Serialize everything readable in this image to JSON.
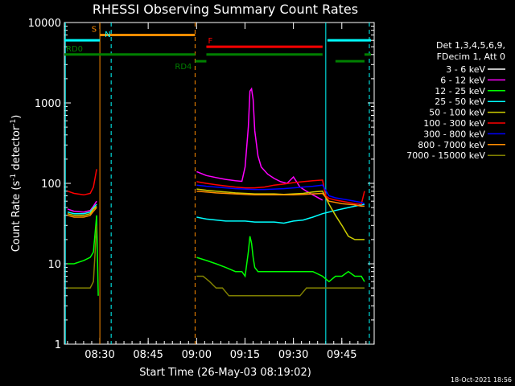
{
  "chart_data": {
    "type": "line",
    "title": "RHESSI Observing Summary Count Rates",
    "xlabel": "Start Time (26-May-03 08:19:02)",
    "ylabel_main": "Count Rate (s",
    "ylabel_exp1": "-1",
    "ylabel_mid": " detector",
    "ylabel_exp2": "-1",
    "ylabel_end": ")",
    "yscale": "log",
    "ylim": [
      1,
      10000
    ],
    "xlim_minutes": [
      0,
      96
    ],
    "x_ticks": [
      {
        "label": "08:30",
        "t": 10.97
      },
      {
        "label": "08:45",
        "t": 25.97
      },
      {
        "label": "09:00",
        "t": 40.97
      },
      {
        "label": "09:15",
        "t": 55.97
      },
      {
        "label": "09:30",
        "t": 70.97
      },
      {
        "label": "09:45",
        "t": 85.97
      }
    ],
    "y_ticks": [
      {
        "label": "1",
        "v": 1
      },
      {
        "label": "10",
        "v": 10
      },
      {
        "label": "100",
        "v": 100
      },
      {
        "label": "1000",
        "v": 1000
      },
      {
        "label": "10000",
        "v": 10000
      }
    ],
    "legend_header": [
      "Det 1,3,4,5,6,9,",
      "FDecim 1, Att 0"
    ],
    "legend_position": "right",
    "series": [
      {
        "name": "3 - 6 keV",
        "color": "#000000",
        "x": [
          0,
          3,
          6,
          8,
          9,
          40.5,
          41,
          45,
          50,
          52,
          55,
          57,
          58,
          59,
          60,
          61,
          62,
          64,
          66,
          68,
          70,
          72,
          74,
          76,
          78,
          79,
          80,
          80.5
        ],
        "y": [
          null,
          null,
          null,
          null,
          null,
          null,
          240,
          220,
          205,
          195,
          185,
          300,
          700,
          900,
          600,
          350,
          280,
          220,
          170,
          140,
          125,
          135,
          115,
          108,
          102,
          100,
          100,
          null
        ]
      },
      {
        "name": "6 - 12 keV",
        "color": "#ff00ff",
        "x": [
          0,
          1,
          3,
          6,
          8,
          9,
          10,
          11,
          40.5,
          41,
          44,
          47,
          50,
          53,
          55,
          56,
          57,
          57.5,
          58,
          58.5,
          59,
          60,
          61,
          63,
          65,
          67,
          69,
          71,
          73,
          75,
          77,
          79,
          80
        ],
        "y": [
          null,
          48,
          45,
          44,
          46,
          52,
          60,
          null,
          null,
          140,
          125,
          118,
          112,
          108,
          106,
          160,
          500,
          1400,
          1500,
          1100,
          450,
          220,
          160,
          130,
          115,
          105,
          100,
          120,
          90,
          80,
          72,
          65,
          62
        ]
      },
      {
        "name": "12 - 25 keV",
        "color": "#00ff00",
        "x": [
          0,
          1,
          3,
          6,
          8,
          9,
          10,
          10.5,
          11,
          40.5,
          41,
          44,
          47,
          50,
          53,
          55,
          56,
          57,
          57.5,
          58,
          58.5,
          59,
          60,
          62,
          65,
          68,
          71,
          74,
          77,
          80,
          82,
          84,
          86,
          88,
          90,
          92,
          93
        ],
        "y": [
          null,
          10,
          10,
          11,
          12,
          14,
          40,
          4,
          null,
          null,
          12,
          11,
          10,
          9,
          8,
          8,
          7,
          14,
          22,
          18,
          12,
          9,
          8,
          8,
          8,
          8,
          8,
          8,
          8,
          7,
          6,
          7,
          7,
          8,
          7,
          7,
          6
        ]
      },
      {
        "name": "25 - 50 keV",
        "color": "#00ffff",
        "x": [
          0,
          1,
          3,
          6,
          8,
          9,
          10,
          11,
          40.5,
          41,
          44,
          47,
          50,
          53,
          56,
          59,
          62,
          65,
          68,
          71,
          74,
          77,
          80,
          82,
          84,
          86,
          88,
          90,
          92,
          93
        ],
        "y": [
          null,
          44,
          42,
          42,
          44,
          50,
          55,
          null,
          null,
          38,
          36,
          35,
          34,
          34,
          34,
          33,
          33,
          33,
          32,
          34,
          35,
          38,
          42,
          44,
          46,
          48,
          50,
          52,
          54,
          55
        ]
      },
      {
        "name": "50 - 100 keV",
        "color": "#cccc00",
        "x": [
          0,
          1,
          3,
          6,
          8,
          9,
          10,
          11,
          40.5,
          41,
          44,
          47,
          50,
          53,
          56,
          59,
          62,
          65,
          68,
          71,
          74,
          77,
          80,
          82,
          84,
          86,
          88,
          90,
          92,
          93
        ],
        "y": [
          null,
          42,
          40,
          40,
          42,
          48,
          52,
          null,
          null,
          85,
          82,
          80,
          78,
          76,
          75,
          74,
          74,
          74,
          73,
          74,
          75,
          78,
          80,
          55,
          40,
          30,
          22,
          20,
          20,
          20
        ]
      },
      {
        "name": "100 - 300 keV",
        "color": "#ff0000",
        "x": [
          0,
          1,
          3,
          6,
          8,
          9,
          10,
          11,
          40.5,
          41,
          44,
          47,
          50,
          53,
          56,
          59,
          62,
          65,
          68,
          71,
          74,
          77,
          80,
          81,
          82,
          84,
          86,
          88,
          90,
          92,
          93
        ],
        "y": [
          null,
          80,
          75,
          72,
          75,
          90,
          150,
          null,
          null,
          105,
          100,
          96,
          93,
          90,
          88,
          88,
          90,
          95,
          98,
          102,
          105,
          108,
          110,
          70,
          65,
          62,
          60,
          58,
          56,
          55,
          80
        ]
      },
      {
        "name": "300 - 800 keV",
        "color": "#0000ff",
        "x": [
          0,
          40.5,
          41,
          44,
          47,
          50,
          53,
          56,
          59,
          62,
          65,
          68,
          71,
          74,
          77,
          80,
          82,
          84,
          86,
          88,
          90,
          92,
          93
        ],
        "y": [
          null,
          null,
          95,
          92,
          90,
          88,
          86,
          85,
          84,
          84,
          85,
          86,
          88,
          90,
          92,
          95,
          70,
          66,
          64,
          62,
          60,
          58,
          56
        ]
      },
      {
        "name": "800 - 7000 keV",
        "color": "#ff8c00",
        "x": [
          0,
          1,
          3,
          6,
          8,
          9,
          10,
          11,
          40.5,
          41,
          44,
          47,
          50,
          53,
          56,
          59,
          62,
          65,
          68,
          71,
          74,
          77,
          80,
          82,
          84,
          86,
          88,
          90,
          92,
          93
        ],
        "y": [
          null,
          40,
          38,
          38,
          40,
          45,
          50,
          null,
          null,
          80,
          78,
          76,
          75,
          74,
          73,
          72,
          72,
          72,
          72,
          72,
          73,
          74,
          75,
          60,
          58,
          56,
          55,
          54,
          52,
          52
        ]
      },
      {
        "name": "7000 - 15000 keV",
        "color": "#808000",
        "x": [
          0,
          1,
          3,
          5,
          7,
          8,
          9,
          10,
          11,
          40.5,
          41,
          43,
          45,
          47,
          49,
          51,
          53,
          55,
          57,
          59,
          61,
          63,
          65,
          67,
          69,
          71,
          73,
          75,
          77,
          79,
          80,
          82,
          84,
          86,
          88,
          90,
          92,
          93
        ],
        "y": [
          null,
          5,
          5,
          5,
          5,
          5,
          6,
          30,
          null,
          null,
          7,
          7,
          6,
          5,
          5,
          4,
          4,
          4,
          4,
          4,
          4,
          4,
          4,
          4,
          4,
          4,
          4,
          5,
          5,
          5,
          5,
          5,
          5,
          5,
          5,
          5,
          5,
          5
        ]
      }
    ],
    "annotations": {
      "bars": [
        {
          "label": "S",
          "label_color": "#ff8c00",
          "color": "#ff8c00",
          "t0": 11,
          "t1": 40.5,
          "v": 7000
        },
        {
          "label": "N",
          "label_color": "#00ffff",
          "color": "#00ffff",
          "t0": 0,
          "t1": 11,
          "v": 6000
        },
        {
          "label": "",
          "label_color": "#00ffff",
          "color": "#00ffff",
          "t0": 81.5,
          "t1": 95,
          "v": 6000
        },
        {
          "label": "F",
          "label_color": "#ff0000",
          "color": "#ff0000",
          "t0": 44,
          "t1": 80,
          "v": 5000
        },
        {
          "label": "RD0",
          "label_color": "#008000",
          "color": "#008000",
          "t0": 0,
          "t1": 40.5,
          "v": 4000
        },
        {
          "label": "",
          "label_color": "#008000",
          "color": "#008000",
          "t0": 44,
          "t1": 80,
          "v": 4000
        },
        {
          "label": "",
          "label_color": "#008000",
          "color": "#008000",
          "t0": 93,
          "t1": 95,
          "v": 4000
        },
        {
          "label": "RD4",
          "label_color": "#008000",
          "color": "#008000",
          "t0": 40.5,
          "t1": 44,
          "v": 3300
        },
        {
          "label": "",
          "label_color": "#008000",
          "color": "#008000",
          "t0": 84,
          "t1": 93,
          "v": 3300
        }
      ],
      "vlines": [
        {
          "t": 11,
          "color": "#ff8c00",
          "dashed": false
        },
        {
          "t": 14.5,
          "color": "#00ffff",
          "dashed": true
        },
        {
          "t": 40.5,
          "color": "#ff8c00",
          "dashed": true
        },
        {
          "t": 81,
          "color": "#00ffff",
          "dashed": false
        },
        {
          "t": 94.5,
          "color": "#00ffff",
          "dashed": true
        },
        {
          "t": 0.3,
          "color": "#00ffff",
          "dashed": false
        }
      ]
    }
  },
  "footer_timestamp": "18-Oct-2021 18:56"
}
